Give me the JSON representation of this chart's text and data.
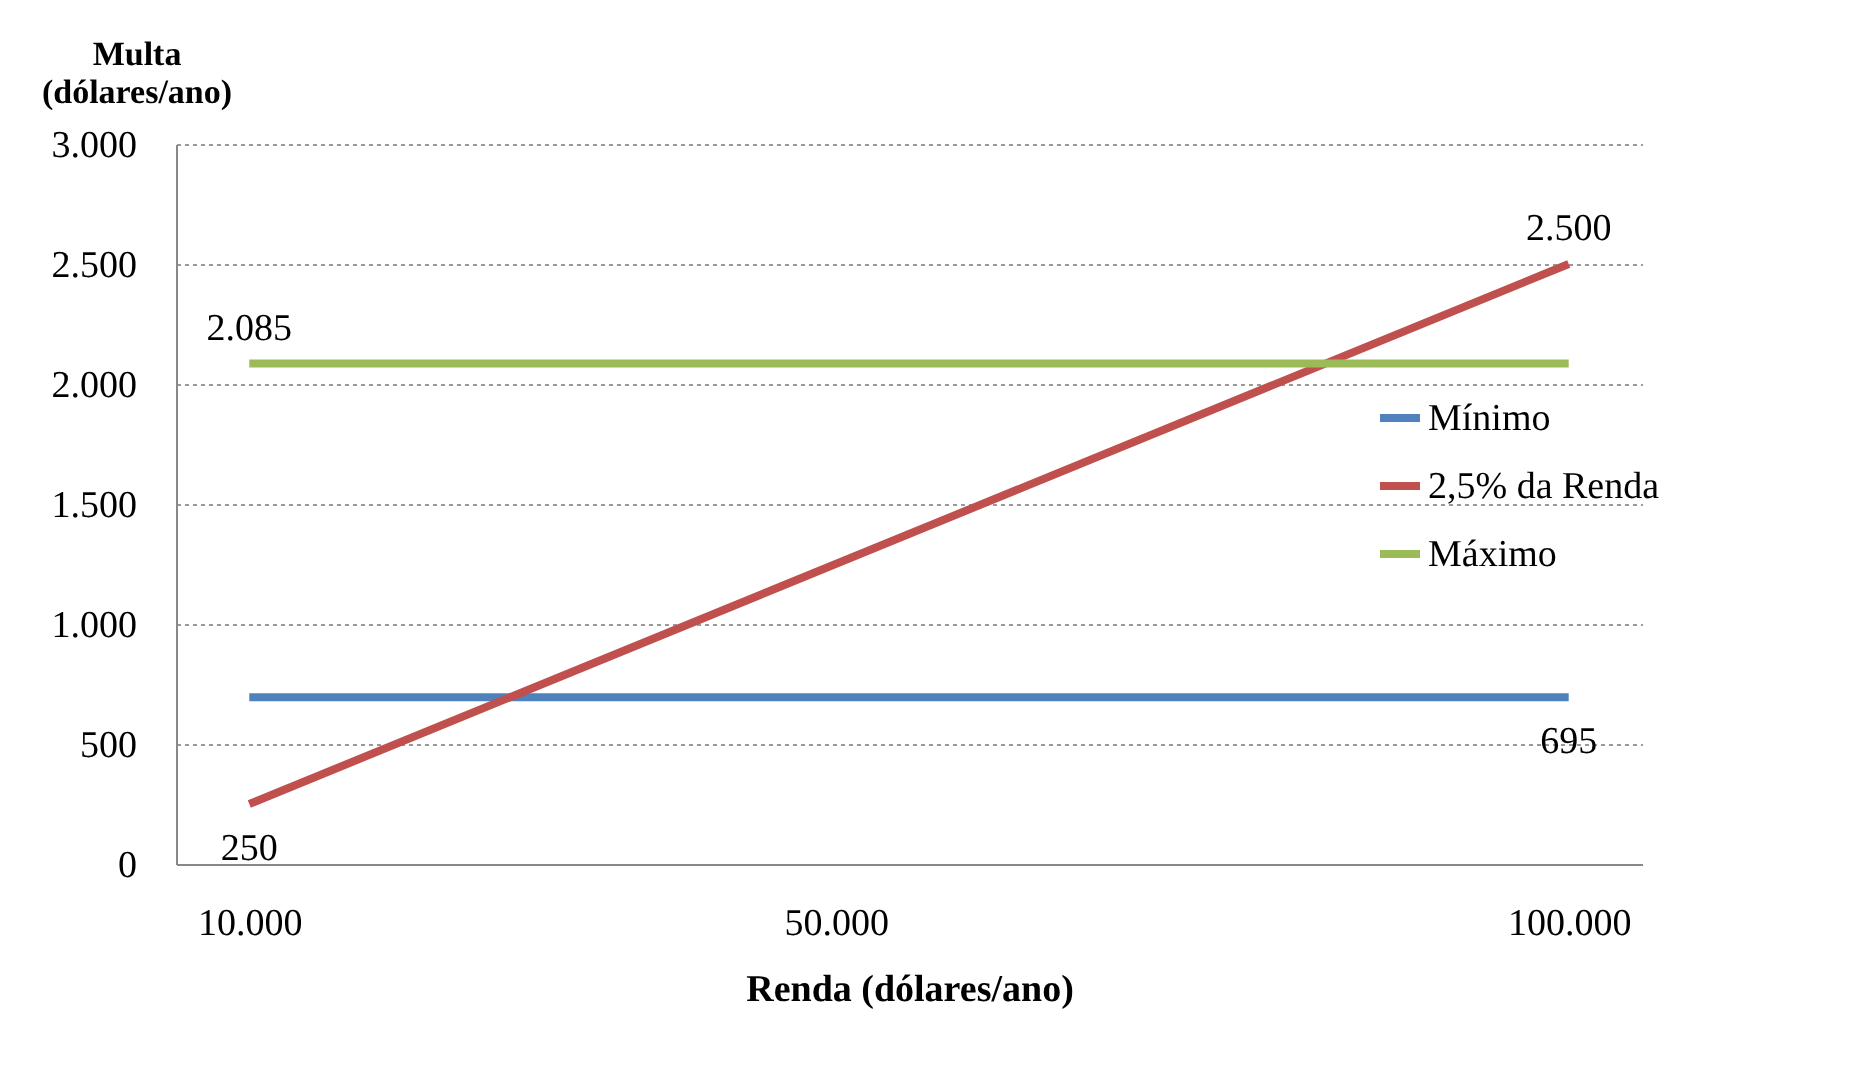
{
  "chart_data": {
    "type": "line",
    "xlabel": "Renda (dólares/ano)",
    "ylabel": "Multa (dólares/ano)",
    "xlim": [
      5000,
      105000
    ],
    "xticks": [
      {
        "value": 10000,
        "label": "10.000"
      },
      {
        "value": 50000,
        "label": "50.000"
      },
      {
        "value": 100000,
        "label": "100.000"
      }
    ],
    "ylim": [
      0,
      3000
    ],
    "yticks": [
      0,
      500,
      {
        "value": 1000,
        "label": "1.000"
      },
      {
        "value": 1500,
        "label": "1.500"
      },
      {
        "value": 2000,
        "label": "2.000"
      },
      {
        "value": 2500,
        "label": "2.500"
      },
      {
        "value": 3000,
        "label": "3.000"
      }
    ],
    "x": [
      10000,
      100000
    ],
    "grid": "y",
    "legend": "right",
    "marker": "none",
    "series": [
      {
        "name": "Mínimo",
        "color": "#4f81bd",
        "values": [
          695,
          695
        ],
        "value_labels": [
          null,
          "695"
        ]
      },
      {
        "name": "2,5% da Renda",
        "color": "#c0504d",
        "values": [
          250,
          2500
        ],
        "value_labels": [
          "250",
          "2.500"
        ]
      },
      {
        "name": "Máximo",
        "color": "#9bbb59",
        "values": [
          2085,
          2085
        ],
        "value_labels": [
          "2.085",
          null
        ]
      }
    ]
  }
}
